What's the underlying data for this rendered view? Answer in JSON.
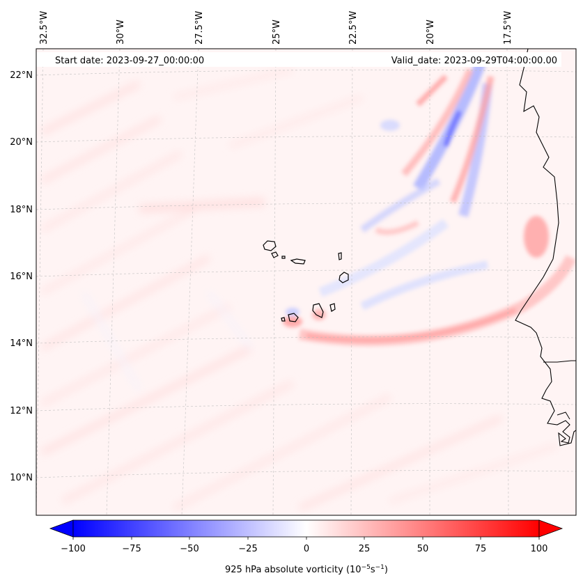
{
  "map": {
    "start_label": "Start date: 2023-09-27_00:00:00",
    "valid_label": "Valid_date: 2023-09-29T04:00:00.00",
    "lon_labels": [
      "32.5°W",
      "30°W",
      "27.5°W",
      "25°W",
      "22.5°W",
      "20°W",
      "17.5°W"
    ],
    "lat_labels": [
      "22°N",
      "20°N",
      "18°N",
      "16°N",
      "14°N",
      "12°N",
      "10°N"
    ],
    "variable": "925 hPa absolute vorticity"
  },
  "colorbar": {
    "label_text": "925 hPa absolute vorticity (10",
    "label_exp1": "−5",
    "label_mid": "s",
    "label_exp2": "−1",
    "label_end": ")",
    "min": -100,
    "max": 100,
    "ticks": [
      "−100",
      "−75",
      "−50",
      "−25",
      "0",
      "25",
      "50",
      "75",
      "100"
    ],
    "colormap": "bwr",
    "low_color": "#0000ff",
    "mid_color": "#ffffff",
    "high_color": "#ff0000"
  },
  "colors": {
    "coastline": "#000000",
    "grid": "#bbbbbb",
    "background_field": "#fff2f2"
  }
}
